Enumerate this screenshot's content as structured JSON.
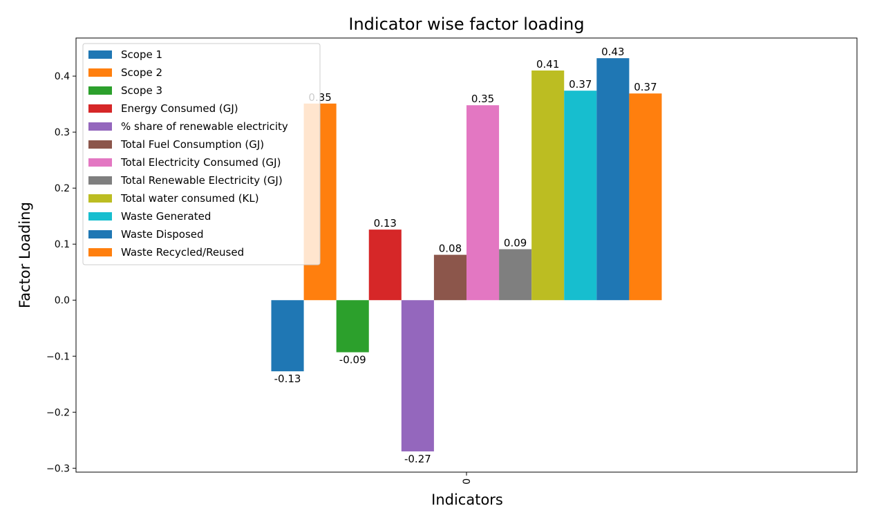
{
  "chart_data": {
    "type": "bar",
    "title": "Indicator wise factor loading",
    "xlabel": "Indicators",
    "ylabel": "Factor Loading",
    "categories": [
      "0"
    ],
    "ylim": [
      -0.307,
      0.468
    ],
    "yticks": [
      {
        "value": -0.3,
        "label": "−0.3"
      },
      {
        "value": -0.2,
        "label": "−0.2"
      },
      {
        "value": -0.1,
        "label": "−0.1"
      },
      {
        "value": 0,
        "label": "0.0"
      },
      0.1,
      0.2,
      0.3,
      0.4
    ],
    "legend": "upper left",
    "series": [
      {
        "name": "Scope 1",
        "color": "#1f77b4",
        "values": [
          -0.127
        ],
        "value_labels": [
          "-0.13"
        ]
      },
      {
        "name": "Scope 2",
        "color": "#ff7f0e",
        "values": [
          0.351
        ],
        "value_labels": [
          "0.35"
        ]
      },
      {
        "name": "Scope 3",
        "color": "#2ca02c",
        "values": [
          -0.093
        ],
        "value_labels": [
          "-0.09"
        ]
      },
      {
        "name": "Energy Consumed (GJ)",
        "color": "#d62728",
        "values": [
          0.126
        ],
        "value_labels": [
          "0.13"
        ]
      },
      {
        "name": "% share of renewable electricity",
        "color": "#9467bd",
        "values": [
          -0.27
        ],
        "value_labels": [
          "-0.27"
        ]
      },
      {
        "name": "Total Fuel Consumption (GJ)",
        "color": "#8c564b",
        "values": [
          0.081
        ],
        "value_labels": [
          "0.08"
        ]
      },
      {
        "name": "Total Electricity Consumed (GJ)",
        "color": "#e377c2",
        "values": [
          0.348
        ],
        "value_labels": [
          "0.35"
        ]
      },
      {
        "name": "Total Renewable Electricity (GJ)",
        "color": "#7f7f7f",
        "values": [
          0.091
        ],
        "value_labels": [
          "0.09"
        ]
      },
      {
        "name": "Total water consumed (KL)",
        "color": "#bcbd22",
        "values": [
          0.41
        ],
        "value_labels": [
          "0.41"
        ]
      },
      {
        "name": "Waste Generated",
        "color": "#17becf",
        "values": [
          0.374
        ],
        "value_labels": [
          "0.37"
        ]
      },
      {
        "name": "Waste Disposed",
        "color": "#1f77b4",
        "values": [
          0.432
        ],
        "value_labels": [
          "0.43"
        ]
      },
      {
        "name": "Waste Recycled/Reused",
        "color": "#ff7f0e",
        "values": [
          0.369
        ],
        "value_labels": [
          "0.37"
        ]
      }
    ]
  }
}
